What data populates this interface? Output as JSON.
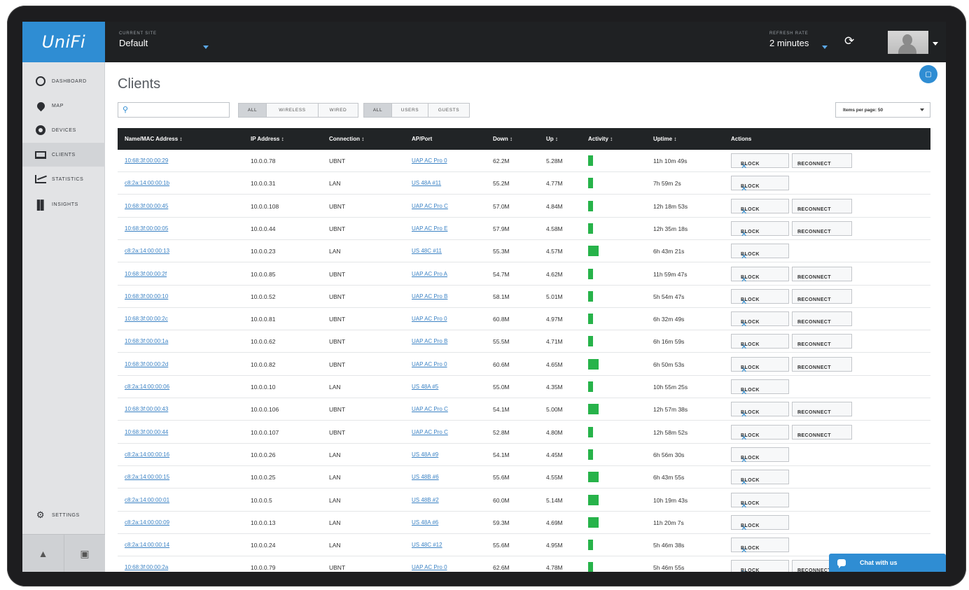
{
  "header": {
    "logo": "UniFi",
    "site_label": "CURRENT SITE",
    "site_value": "Default",
    "refresh_label": "REFRESH RATE",
    "refresh_value": "2 minutes"
  },
  "sidebar": {
    "items": [
      {
        "label": "DASHBOARD",
        "icon": "dashboard-icon"
      },
      {
        "label": "MAP",
        "icon": "map-pin-icon"
      },
      {
        "label": "DEVICES",
        "icon": "devices-icon"
      },
      {
        "label": "CLIENTS",
        "icon": "clients-icon",
        "active": true
      },
      {
        "label": "STATISTICS",
        "icon": "statistics-icon"
      },
      {
        "label": "INSIGHTS",
        "icon": "insights-icon"
      }
    ],
    "settings_label": "SETTINGS"
  },
  "main": {
    "title": "Clients",
    "filter_type": [
      "ALL",
      "WIRELESS",
      "WIRED"
    ],
    "filter_user": [
      "ALL",
      "USERS",
      "GUESTS"
    ],
    "per_page": "Items per page: 50"
  },
  "table": {
    "headers": [
      "Name/MAC Address ↕",
      "IP Address ↕",
      "Connection ↕",
      "AP/Port",
      "Down ↕",
      "Up ↕",
      "Activity ↕",
      "Uptime ↕",
      "Actions"
    ],
    "block_label": "BLOCK",
    "reconnect_label": "RECONNECT",
    "activity_color": "#27b34a",
    "rows": [
      {
        "mac": "10:68:3f:00:00:29",
        "ip": "10.0.0.78",
        "conn": "UBNT",
        "ap": "UAP AC Pro 0",
        "down": "62.2M",
        "up": "5.28M",
        "activity": 1,
        "uptime": "11h 10m 49s",
        "reconnect": true
      },
      {
        "mac": "c8:2a:14:00:00:1b",
        "ip": "10.0.0.31",
        "conn": "LAN",
        "ap": "US 48A #11",
        "down": "55.2M",
        "up": "4.77M",
        "activity": 1,
        "uptime": "7h 59m 2s",
        "reconnect": false
      },
      {
        "mac": "10:68:3f:00:00:45",
        "ip": "10.0.0.108",
        "conn": "UBNT",
        "ap": "UAP AC Pro C",
        "down": "57.0M",
        "up": "4.84M",
        "activity": 1,
        "uptime": "12h 18m 53s",
        "reconnect": true
      },
      {
        "mac": "10:68:3f:00:00:05",
        "ip": "10.0.0.44",
        "conn": "UBNT",
        "ap": "UAP AC Pro E",
        "down": "57.9M",
        "up": "4.58M",
        "activity": 1,
        "uptime": "12h 35m 18s",
        "reconnect": true
      },
      {
        "mac": "c8:2a:14:00:00:13",
        "ip": "10.0.0.23",
        "conn": "LAN",
        "ap": "US 48C #11",
        "down": "55.3M",
        "up": "4.57M",
        "activity": 2,
        "uptime": "6h 43m 21s",
        "reconnect": false
      },
      {
        "mac": "10:68:3f:00:00:2f",
        "ip": "10.0.0.85",
        "conn": "UBNT",
        "ap": "UAP AC Pro A",
        "down": "54.7M",
        "up": "4.62M",
        "activity": 1,
        "uptime": "11h 59m 47s",
        "reconnect": true
      },
      {
        "mac": "10:68:3f:00:00:10",
        "ip": "10.0.0.52",
        "conn": "UBNT",
        "ap": "UAP AC Pro B",
        "down": "58.1M",
        "up": "5.01M",
        "activity": 1,
        "uptime": "5h 54m 47s",
        "reconnect": true
      },
      {
        "mac": "10:68:3f:00:00:2c",
        "ip": "10.0.0.81",
        "conn": "UBNT",
        "ap": "UAP AC Pro 0",
        "down": "60.8M",
        "up": "4.97M",
        "activity": 1,
        "uptime": "6h 32m 49s",
        "reconnect": true
      },
      {
        "mac": "10:68:3f:00:00:1a",
        "ip": "10.0.0.62",
        "conn": "UBNT",
        "ap": "UAP AC Pro B",
        "down": "55.5M",
        "up": "4.71M",
        "activity": 1,
        "uptime": "6h 16m 59s",
        "reconnect": true
      },
      {
        "mac": "10:68:3f:00:00:2d",
        "ip": "10.0.0.82",
        "conn": "UBNT",
        "ap": "UAP AC Pro 0",
        "down": "60.6M",
        "up": "4.65M",
        "activity": 2,
        "uptime": "6h 50m 53s",
        "reconnect": true
      },
      {
        "mac": "c8:2a:14:00:00:06",
        "ip": "10.0.0.10",
        "conn": "LAN",
        "ap": "US 48A #5",
        "down": "55.0M",
        "up": "4.35M",
        "activity": 1,
        "uptime": "10h 55m 25s",
        "reconnect": false
      },
      {
        "mac": "10:68:3f:00:00:43",
        "ip": "10.0.0.106",
        "conn": "UBNT",
        "ap": "UAP AC Pro C",
        "down": "54.1M",
        "up": "5.00M",
        "activity": 2,
        "uptime": "12h 57m 38s",
        "reconnect": true
      },
      {
        "mac": "10:68:3f:00:00:44",
        "ip": "10.0.0.107",
        "conn": "UBNT",
        "ap": "UAP AC Pro C",
        "down": "52.8M",
        "up": "4.80M",
        "activity": 1,
        "uptime": "12h 58m 52s",
        "reconnect": true
      },
      {
        "mac": "c8:2a:14:00:00:16",
        "ip": "10.0.0.26",
        "conn": "LAN",
        "ap": "US 48A #9",
        "down": "54.1M",
        "up": "4.45M",
        "activity": 1,
        "uptime": "6h 56m 30s",
        "reconnect": false
      },
      {
        "mac": "c8:2a:14:00:00:15",
        "ip": "10.0.0.25",
        "conn": "LAN",
        "ap": "US 48B #6",
        "down": "55.6M",
        "up": "4.55M",
        "activity": 2,
        "uptime": "6h 43m 55s",
        "reconnect": false
      },
      {
        "mac": "c8:2a:14:00:00:01",
        "ip": "10.0.0.5",
        "conn": "LAN",
        "ap": "US 48B #2",
        "down": "60.0M",
        "up": "5.14M",
        "activity": 2,
        "uptime": "10h 19m 43s",
        "reconnect": false
      },
      {
        "mac": "c8:2a:14:00:00:09",
        "ip": "10.0.0.13",
        "conn": "LAN",
        "ap": "US 48A #6",
        "down": "59.3M",
        "up": "4.69M",
        "activity": 2,
        "uptime": "11h 20m 7s",
        "reconnect": false
      },
      {
        "mac": "c8:2a:14:00:00:14",
        "ip": "10.0.0.24",
        "conn": "LAN",
        "ap": "US 48C #12",
        "down": "55.6M",
        "up": "4.95M",
        "activity": 1,
        "uptime": "5h 46m 38s",
        "reconnect": false
      },
      {
        "mac": "10:68:3f:00:00:2a",
        "ip": "10.0.0.79",
        "conn": "UBNT",
        "ap": "UAP AC Pro 0",
        "down": "62.6M",
        "up": "4.78M",
        "activity": 1,
        "uptime": "5h 46m 55s",
        "reconnect": true
      }
    ]
  },
  "chat": {
    "label": "Chat with us"
  }
}
